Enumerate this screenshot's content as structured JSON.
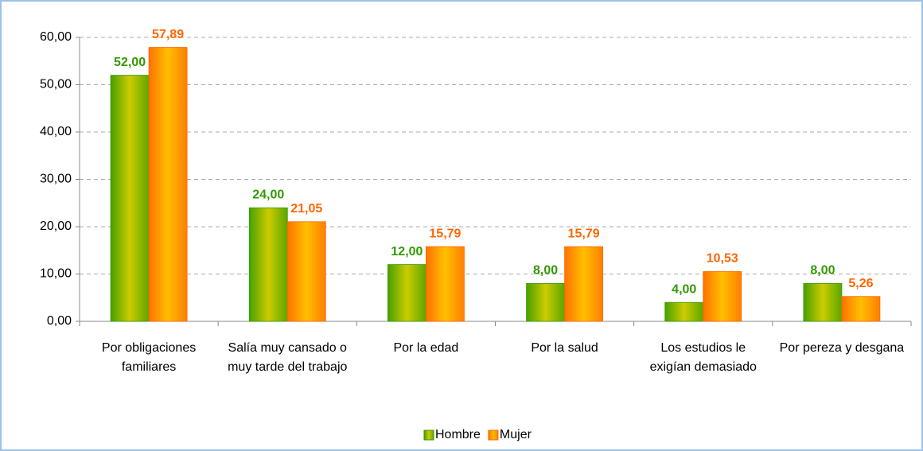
{
  "chart_data": {
    "type": "bar",
    "categories": [
      "Por obligaciones familiares",
      "Salía muy cansado o muy tarde del trabajo",
      "Por la edad",
      "Por la salud",
      "Los estudios le exigían demasiado",
      "Por pereza y desgana"
    ],
    "series": [
      {
        "name": "Hombre",
        "color": "#339900",
        "values": [
          52,
          24,
          12,
          8,
          4,
          8
        ],
        "value_labels": [
          "52,00",
          "24,00",
          "12,00",
          "8,00",
          "4,00",
          "8,00"
        ]
      },
      {
        "name": "Mujer",
        "color": "#ff6600",
        "values": [
          57.89,
          21.05,
          15.79,
          15.79,
          10.53,
          5.26
        ],
        "value_labels": [
          "57,89",
          "21,05",
          "15,79",
          "15,79",
          "10,53",
          "5,26"
        ]
      }
    ],
    "ylim": [
      0,
      60
    ],
    "yticks": [
      {
        "value": 0,
        "label": "0,00"
      },
      {
        "value": 10,
        "label": "10,00"
      },
      {
        "value": 20,
        "label": "20,00"
      },
      {
        "value": 30,
        "label": "30,00"
      },
      {
        "value": 40,
        "label": "40,00"
      },
      {
        "value": 50,
        "label": "50,00"
      },
      {
        "value": 60,
        "label": "60,00"
      }
    ],
    "grid": true,
    "legend": "bottom"
  }
}
